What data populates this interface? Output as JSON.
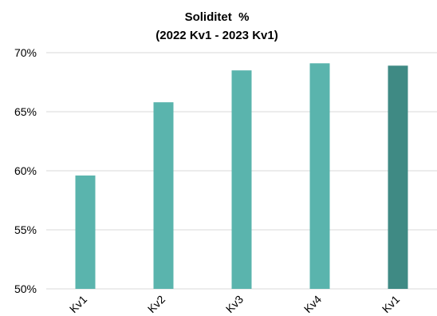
{
  "chart_data": {
    "type": "bar",
    "title": "Soliditet  %",
    "subtitle": "(2022 Kv1 - 2023 Kv1)",
    "xlabel": "",
    "ylabel": "",
    "categories": [
      "Kv1",
      "Kv2",
      "Kv3",
      "Kv4",
      "Kv1"
    ],
    "values": [
      59.6,
      65.8,
      68.5,
      69.1,
      68.9
    ],
    "ylim": [
      50,
      70
    ],
    "yticks": [
      50,
      55,
      60,
      65,
      70
    ],
    "ytick_labels": [
      "50%",
      "55%",
      "60%",
      "65%",
      "70%"
    ],
    "grid": true,
    "legend": "none",
    "colors": [
      "#5ab4ad",
      "#5ab4ad",
      "#5ab4ad",
      "#5ab4ad",
      "#3f8a84"
    ],
    "gridline_color": "#d9d9d9"
  }
}
